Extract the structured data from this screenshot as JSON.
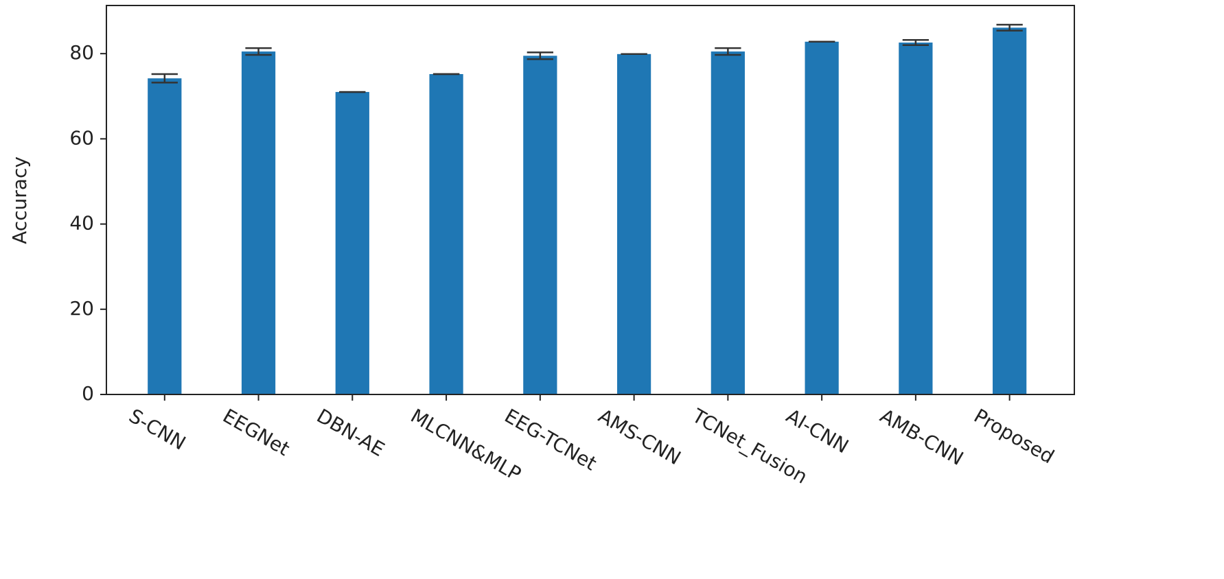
{
  "chart_data": {
    "type": "bar",
    "y_label": "Accuracy",
    "categories": [
      "S-CNN",
      "EEGNet",
      "DBN-AE",
      "MLCNN&MLP",
      "EEG-TCNet",
      "AMS-CNN",
      "TCNet_Fusion",
      "AI-CNN",
      "AMB-CNN",
      "Proposed"
    ],
    "values": [
      74.2,
      80.5,
      71.0,
      75.2,
      79.5,
      79.9,
      80.5,
      82.8,
      82.6,
      86.1
    ],
    "errors": [
      1.0,
      0.8,
      0,
      0,
      0.8,
      0,
      0.8,
      0,
      0.6,
      0.7
    ],
    "color": "#1f77b4",
    "error_color": "#333333",
    "ylim": [
      0,
      91.3
    ],
    "yticks": [
      0,
      20,
      40,
      60,
      80
    ]
  }
}
